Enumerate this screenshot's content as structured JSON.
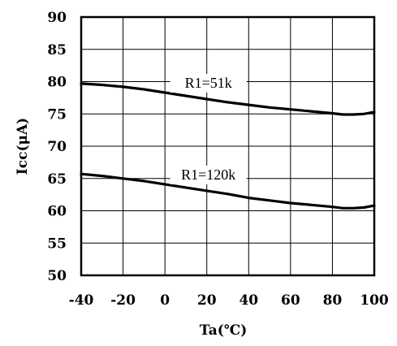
{
  "chart_data": {
    "type": "line",
    "title": "",
    "xlabel": "Ta(℃)",
    "ylabel": "Icc(μA)",
    "xlim": [
      -40,
      100
    ],
    "ylim": [
      50,
      90
    ],
    "x_ticks": [
      "-40",
      "-20",
      "0",
      "20",
      "40",
      "60",
      "80",
      "100"
    ],
    "y_ticks": [
      "90",
      "85",
      "80",
      "75",
      "70",
      "65",
      "60",
      "55",
      "50"
    ],
    "grid": true,
    "series": [
      {
        "name": "R1=51k",
        "x": [
          -40,
          -30,
          -20,
          -10,
          0,
          10,
          20,
          30,
          40,
          50,
          60,
          70,
          80,
          85,
          90,
          95,
          100
        ],
        "y": [
          79.7,
          79.5,
          79.2,
          78.8,
          78.3,
          77.8,
          77.3,
          76.8,
          76.4,
          76.0,
          75.7,
          75.4,
          75.1,
          74.9,
          74.9,
          75.0,
          75.3
        ]
      },
      {
        "name": "R1=120k",
        "x": [
          -40,
          -30,
          -20,
          -10,
          0,
          10,
          20,
          30,
          40,
          50,
          60,
          70,
          80,
          85,
          90,
          95,
          100
        ],
        "y": [
          65.7,
          65.4,
          65.0,
          64.6,
          64.1,
          63.6,
          63.1,
          62.6,
          62.0,
          61.6,
          61.2,
          60.9,
          60.6,
          60.4,
          60.4,
          60.5,
          60.8
        ]
      }
    ]
  }
}
